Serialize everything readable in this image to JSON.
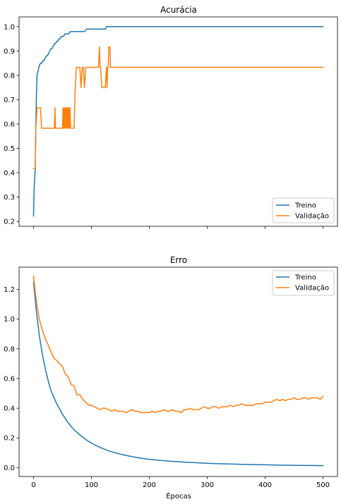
{
  "chart_data": [
    {
      "type": "line",
      "title": "Acurácia",
      "xlabel": "",
      "ylabel": "",
      "xlim": [
        -25,
        525
      ],
      "ylim": [
        0.18,
        1.04
      ],
      "xticks": [
        0,
        100,
        200,
        300,
        400,
        500
      ],
      "show_xtick_labels": false,
      "yticks": [
        0.2,
        0.3,
        0.4,
        0.5,
        0.6,
        0.7,
        0.8,
        0.9,
        1.0
      ],
      "ytick_labels": [
        "0.2",
        "0.3",
        "0.4",
        "0.5",
        "0.6",
        "0.7",
        "0.8",
        "0.9",
        "1.0"
      ],
      "grid": false,
      "legend_position": "lower-right",
      "series": [
        {
          "name": "Treino",
          "color": "#1f77b4",
          "x": [
            0,
            1,
            2,
            3,
            4,
            5,
            6,
            7,
            8,
            9,
            10,
            12,
            14,
            16,
            18,
            20,
            22,
            24,
            26,
            28,
            30,
            32,
            34,
            36,
            38,
            40,
            42,
            44,
            46,
            48,
            50,
            52,
            54,
            56,
            58,
            60,
            64,
            68,
            72,
            76,
            80,
            84,
            88,
            92,
            96,
            100,
            104,
            108,
            112,
            116,
            120,
            124,
            126,
            128,
            132,
            140,
            160,
            200,
            300,
            400,
            500
          ],
          "y": [
            0.222,
            0.33,
            0.38,
            0.41,
            0.6,
            0.72,
            0.8,
            0.81,
            0.82,
            0.83,
            0.84,
            0.85,
            0.85,
            0.86,
            0.86,
            0.87,
            0.88,
            0.88,
            0.89,
            0.9,
            0.91,
            0.91,
            0.92,
            0.93,
            0.93,
            0.94,
            0.94,
            0.95,
            0.95,
            0.96,
            0.96,
            0.96,
            0.97,
            0.97,
            0.97,
            0.97,
            0.98,
            0.98,
            0.98,
            0.98,
            0.98,
            0.98,
            0.98,
            0.99,
            0.99,
            0.99,
            0.99,
            0.99,
            0.99,
            0.99,
            0.99,
            0.99,
            1.0,
            1.0,
            1.0,
            1.0,
            1.0,
            1.0,
            1.0,
            1.0,
            1.0
          ]
        },
        {
          "name": "Validação",
          "color": "#ff7f0e",
          "x": [
            0,
            3,
            4,
            6,
            8,
            10,
            12,
            14,
            16,
            18,
            20,
            24,
            28,
            32,
            36,
            37,
            38,
            40,
            44,
            48,
            50,
            51,
            52,
            53,
            54,
            55,
            56,
            57,
            58,
            59,
            60,
            61,
            62,
            63,
            64,
            65,
            66,
            67,
            68,
            70,
            72,
            74,
            75,
            76,
            78,
            80,
            82,
            84,
            86,
            88,
            90,
            92,
            94,
            96,
            98,
            100,
            104,
            108,
            110,
            112,
            114,
            115,
            116,
            118,
            120,
            122,
            124,
            126,
            127,
            128,
            129,
            130,
            131,
            132,
            133,
            134,
            135,
            136,
            138,
            140,
            150,
            200,
            300,
            400,
            500
          ],
          "y": [
            0.417,
            0.417,
            0.583,
            0.667,
            0.667,
            0.667,
            0.667,
            0.583,
            0.583,
            0.583,
            0.583,
            0.583,
            0.583,
            0.583,
            0.583,
            0.667,
            0.583,
            0.583,
            0.583,
            0.583,
            0.583,
            0.667,
            0.583,
            0.667,
            0.583,
            0.667,
            0.583,
            0.667,
            0.583,
            0.667,
            0.583,
            0.667,
            0.583,
            0.667,
            0.583,
            0.583,
            0.583,
            0.583,
            0.583,
            0.583,
            0.75,
            0.833,
            0.833,
            0.833,
            0.833,
            0.833,
            0.75,
            0.833,
            0.833,
            0.75,
            0.833,
            0.833,
            0.833,
            0.833,
            0.833,
            0.833,
            0.833,
            0.833,
            0.833,
            0.833,
            0.917,
            0.833,
            0.833,
            0.75,
            0.75,
            0.75,
            0.75,
            0.833,
            0.75,
            0.833,
            0.833,
            0.917,
            0.917,
            0.917,
            0.833,
            0.833,
            0.833,
            0.833,
            0.833,
            0.833,
            0.833,
            0.833,
            0.833,
            0.833,
            0.833
          ]
        }
      ]
    },
    {
      "type": "line",
      "title": "Erro",
      "xlabel": "Épocas",
      "ylabel": "",
      "xlim": [
        -25,
        525
      ],
      "ylim": [
        -0.06,
        1.35
      ],
      "xticks": [
        0,
        100,
        200,
        300,
        400,
        500
      ],
      "xtick_labels": [
        "0",
        "100",
        "200",
        "300",
        "400",
        "500"
      ],
      "show_xtick_labels": true,
      "yticks": [
        0.0,
        0.2,
        0.4,
        0.6,
        0.8,
        1.0,
        1.2
      ],
      "ytick_labels": [
        "0.0",
        "0.2",
        "0.4",
        "0.6",
        "0.8",
        "1.0",
        "1.2"
      ],
      "grid": false,
      "legend_position": "upper-right",
      "series": [
        {
          "name": "Treino",
          "color": "#1f77b4",
          "x": [
            0,
            5,
            10,
            15,
            20,
            25,
            30,
            40,
            50,
            60,
            70,
            80,
            90,
            100,
            110,
            120,
            130,
            140,
            150,
            160,
            170,
            180,
            190,
            200,
            220,
            240,
            260,
            280,
            300,
            320,
            340,
            360,
            380,
            400,
            420,
            440,
            460,
            480,
            500
          ],
          "y": [
            1.25,
            1.05,
            0.89,
            0.77,
            0.67,
            0.59,
            0.52,
            0.43,
            0.36,
            0.3,
            0.255,
            0.22,
            0.19,
            0.165,
            0.145,
            0.128,
            0.113,
            0.101,
            0.091,
            0.082,
            0.074,
            0.067,
            0.061,
            0.056,
            0.048,
            0.042,
            0.037,
            0.033,
            0.029,
            0.026,
            0.024,
            0.022,
            0.02,
            0.019,
            0.017,
            0.016,
            0.015,
            0.014,
            0.013
          ]
        },
        {
          "name": "Validação",
          "color": "#ff7f0e",
          "x": [
            0,
            3,
            6,
            10,
            15,
            20,
            25,
            30,
            35,
            40,
            45,
            50,
            55,
            60,
            65,
            70,
            75,
            80,
            85,
            90,
            95,
            100,
            105,
            110,
            115,
            120,
            125,
            130,
            135,
            140,
            145,
            150,
            155,
            160,
            165,
            170,
            175,
            180,
            185,
            190,
            195,
            200,
            205,
            210,
            215,
            220,
            225,
            230,
            235,
            240,
            245,
            250,
            255,
            260,
            265,
            270,
            275,
            280,
            285,
            290,
            295,
            300,
            305,
            310,
            315,
            320,
            325,
            330,
            335,
            340,
            345,
            350,
            355,
            360,
            365,
            370,
            375,
            380,
            385,
            390,
            395,
            400,
            405,
            410,
            415,
            420,
            425,
            430,
            435,
            440,
            445,
            450,
            455,
            460,
            465,
            470,
            475,
            480,
            485,
            490,
            495,
            500
          ],
          "y": [
            1.29,
            1.18,
            1.09,
            1.0,
            0.93,
            0.87,
            0.83,
            0.78,
            0.74,
            0.72,
            0.7,
            0.68,
            0.63,
            0.61,
            0.56,
            0.55,
            0.49,
            0.49,
            0.46,
            0.44,
            0.42,
            0.42,
            0.41,
            0.4,
            0.39,
            0.4,
            0.4,
            0.39,
            0.38,
            0.39,
            0.38,
            0.38,
            0.38,
            0.37,
            0.38,
            0.39,
            0.38,
            0.38,
            0.37,
            0.37,
            0.37,
            0.37,
            0.38,
            0.37,
            0.38,
            0.38,
            0.39,
            0.38,
            0.38,
            0.39,
            0.38,
            0.38,
            0.37,
            0.39,
            0.39,
            0.4,
            0.39,
            0.39,
            0.39,
            0.4,
            0.41,
            0.4,
            0.4,
            0.41,
            0.41,
            0.4,
            0.41,
            0.41,
            0.41,
            0.42,
            0.41,
            0.42,
            0.42,
            0.43,
            0.42,
            0.42,
            0.42,
            0.42,
            0.43,
            0.43,
            0.43,
            0.44,
            0.44,
            0.44,
            0.45,
            0.46,
            0.45,
            0.46,
            0.45,
            0.46,
            0.46,
            0.47,
            0.46,
            0.46,
            0.47,
            0.47,
            0.46,
            0.47,
            0.47,
            0.47,
            0.46,
            0.48
          ]
        }
      ]
    }
  ]
}
